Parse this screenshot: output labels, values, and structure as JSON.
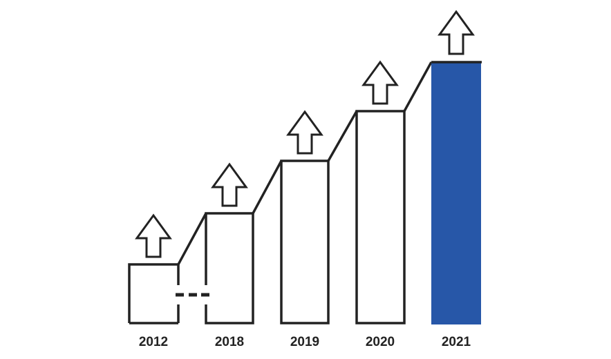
{
  "labels": [
    "2012",
    "2018",
    "2019",
    "2020",
    "2021"
  ]
}
